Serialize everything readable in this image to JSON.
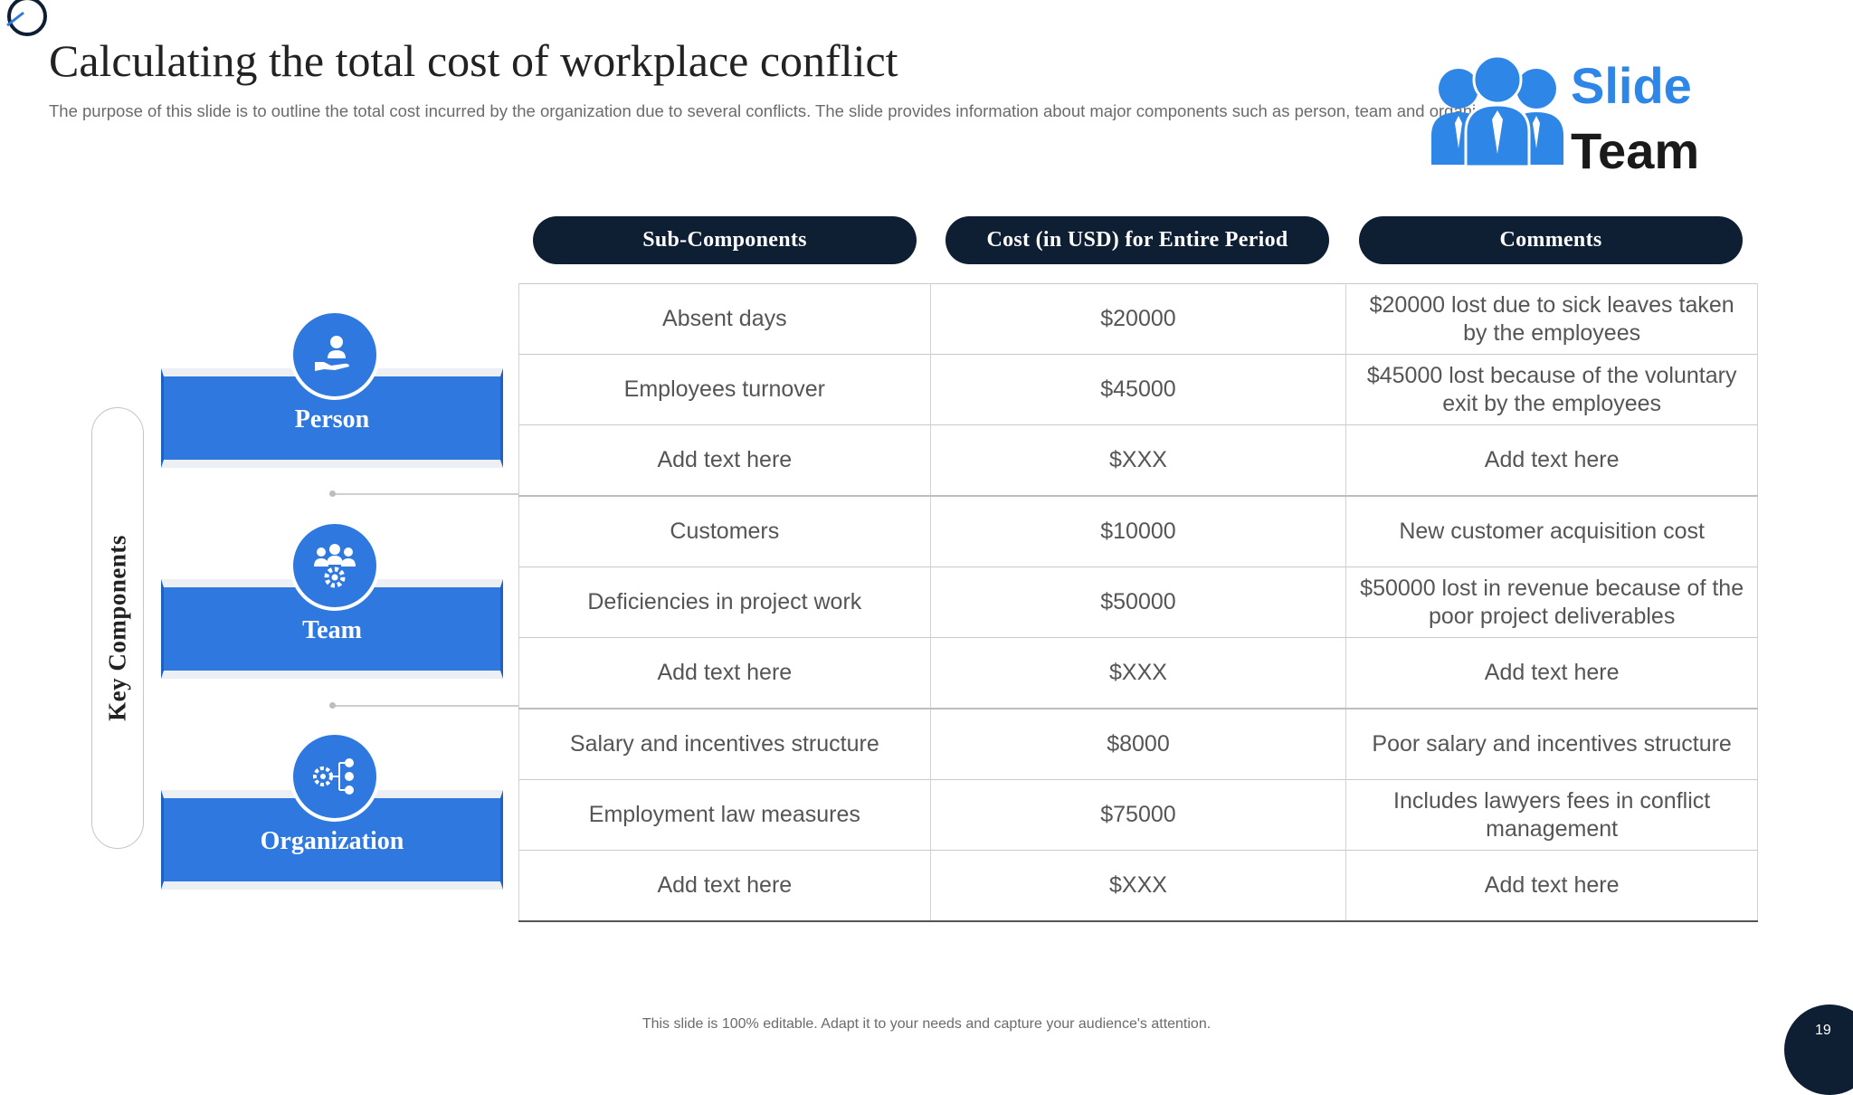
{
  "title": "Calculating the total cost of workplace conflict",
  "subtitle": "The purpose of this slide is to outline the total cost incurred by the organization due to several conflicts. The slide provides information about major components such as person, team and organization",
  "logo": {
    "line1": "Slide",
    "line2": "Team"
  },
  "table": {
    "headers": [
      "Sub-Components",
      "Cost (in  USD) for Entire Period",
      "Comments"
    ],
    "rows": [
      [
        "Absent days",
        "$20000",
        "$20000 lost due to sick leaves taken by the employees"
      ],
      [
        "Employees turnover",
        "$45000",
        "$45000 lost because of the voluntary exit by the employees"
      ],
      [
        "Add text here",
        "$XXX",
        "Add text here"
      ],
      [
        "Customers",
        "$10000",
        "New customer acquisition cost"
      ],
      [
        "Deficiencies in project work",
        "$50000",
        "$50000 lost in revenue because of the poor project deliverables"
      ],
      [
        "Add text here",
        "$XXX",
        "Add text here"
      ],
      [
        "Salary and incentives structure",
        "$8000",
        "Poor salary and incentives structure"
      ],
      [
        "Employment law measures",
        "$75000",
        "Includes  lawyers fees in conflict management"
      ],
      [
        "Add text here",
        "$XXX",
        "Add text here"
      ]
    ]
  },
  "key_components": {
    "label": "Key Components",
    "items": [
      {
        "label": "Person",
        "icon": "hand-holding-person-icon"
      },
      {
        "label": "Team",
        "icon": "team-gear-icon"
      },
      {
        "label": "Organization",
        "icon": "org-network-gear-icon"
      }
    ]
  },
  "footer": "This slide is 100% editable. Adapt it to your needs and capture your audience's attention.",
  "page_number": "19",
  "colors": {
    "navy": "#0e1e33",
    "blue": "#2e78df",
    "logo_blue": "#2e86e6"
  }
}
